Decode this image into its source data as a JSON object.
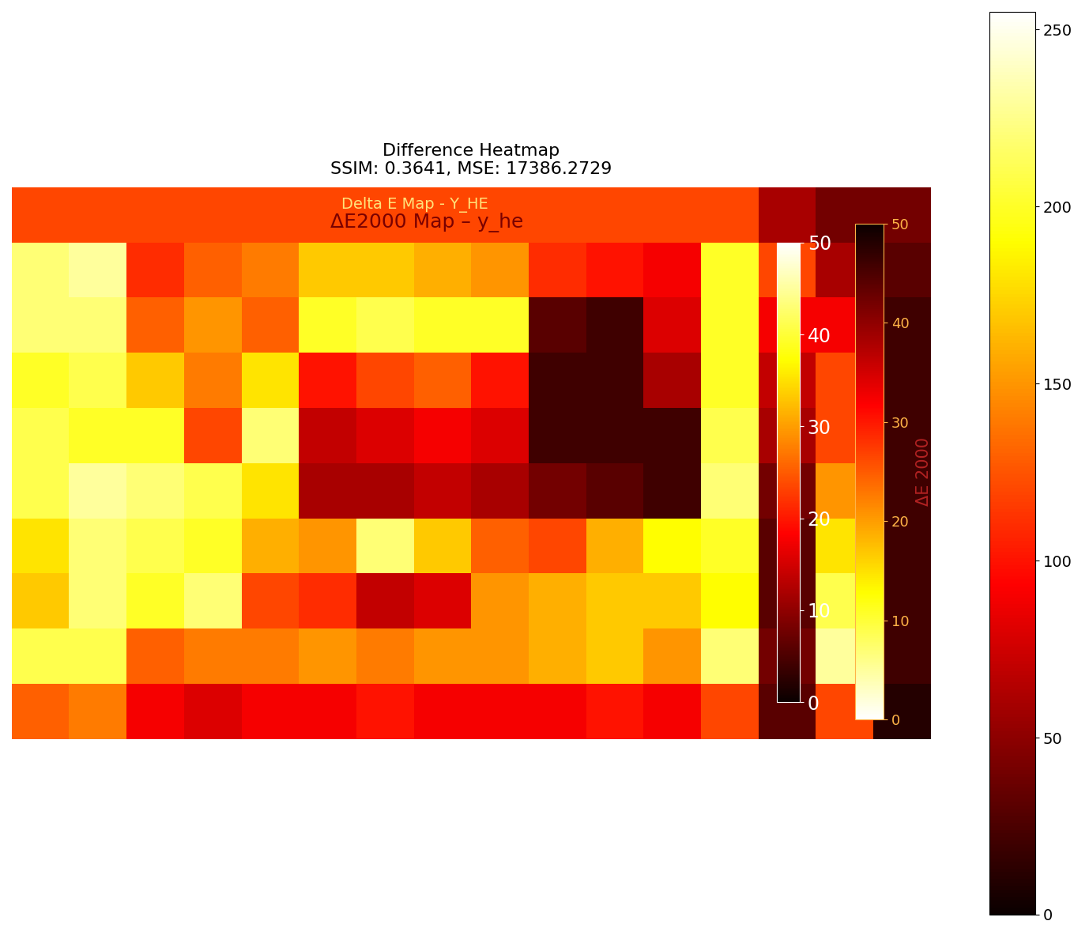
{
  "chart_data": {
    "type": "heatmap",
    "title": "Difference Heatmap\nSSIM: 0.3641, MSE: 17386.2729",
    "color": "hot",
    "tick_labels": false,
    "cells": [
      [
        120,
        120,
        120,
        120,
        120,
        120,
        120,
        120,
        120,
        120,
        120,
        120,
        120,
        60,
        40,
        40
      ],
      [
        220,
        230,
        110,
        130,
        140,
        170,
        170,
        160,
        150,
        110,
        100,
        90,
        200,
        120,
        60,
        30
      ],
      [
        220,
        220,
        130,
        150,
        130,
        200,
        210,
        200,
        200,
        30,
        20,
        80,
        200,
        90,
        90,
        20
      ],
      [
        200,
        210,
        170,
        140,
        180,
        100,
        120,
        130,
        100,
        20,
        20,
        60,
        200,
        70,
        120,
        20
      ],
      [
        210,
        200,
        200,
        120,
        220,
        70,
        80,
        90,
        80,
        20,
        20,
        20,
        210,
        60,
        120,
        20
      ],
      [
        210,
        230,
        220,
        210,
        180,
        60,
        60,
        70,
        60,
        40,
        30,
        20,
        220,
        40,
        150,
        20
      ],
      [
        180,
        220,
        210,
        200,
        160,
        150,
        220,
        170,
        130,
        120,
        160,
        190,
        200,
        30,
        180,
        20
      ],
      [
        170,
        220,
        200,
        220,
        120,
        110,
        70,
        80,
        150,
        160,
        170,
        170,
        190,
        30,
        210,
        20
      ],
      [
        210,
        210,
        130,
        140,
        140,
        150,
        140,
        150,
        150,
        160,
        170,
        150,
        220,
        40,
        230,
        20
      ],
      [
        130,
        140,
        90,
        80,
        90,
        90,
        100,
        90,
        90,
        90,
        100,
        90,
        120,
        30,
        120,
        10
      ]
    ],
    "colorbar_range": [
      0,
      255
    ],
    "colorbar_ticks": [
      0,
      50,
      100,
      150,
      200,
      250
    ],
    "annotations": [
      "Delta E Map - Y_HE",
      "ΔE2000 Map – y_he"
    ],
    "inner_colorbars": [
      {
        "range": [
          0,
          50
        ],
        "ticks": [
          0,
          10,
          20,
          30,
          40,
          50
        ],
        "color": "hot"
      },
      {
        "range": [
          0,
          50
        ],
        "ticks": [
          0,
          10,
          20,
          30,
          40,
          50
        ],
        "color": "hot_r",
        "label": "ΔE 2000"
      }
    ]
  }
}
